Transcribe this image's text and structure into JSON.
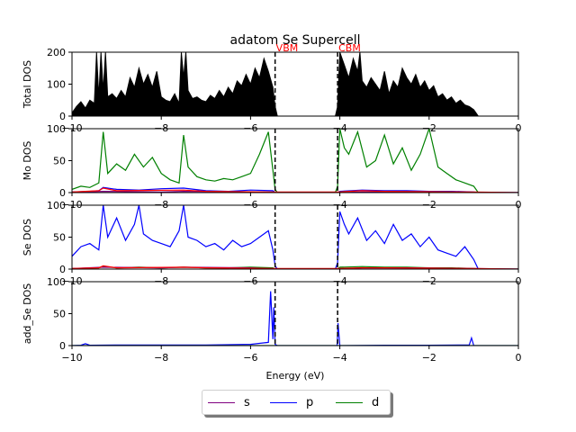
{
  "chart_data": {
    "type": "line",
    "title": "adatom Se Supercell",
    "xlabel": "Energy (eV)",
    "xlim": [
      -10,
      0
    ],
    "xticks": [
      "−10",
      "−8",
      "−6",
      "−4",
      "−2",
      "0"
    ],
    "xtick_values": [
      -10,
      -8,
      -6,
      -4,
      -2,
      0
    ],
    "markers": [
      {
        "label": "VBM",
        "x": -5.45,
        "color": "#ff0000"
      },
      {
        "label": "CBM",
        "x": -4.05,
        "color": "#ff0000"
      }
    ],
    "legend": {
      "placement": "lower-center-outside",
      "entries": [
        {
          "name": "s",
          "color": "#800080"
        },
        {
          "name": "p",
          "color": "#0000ff"
        },
        {
          "name": "d",
          "color": "#008000"
        }
      ]
    },
    "panels": [
      {
        "ylabel": "Total DOS",
        "ylim": [
          0,
          200
        ],
        "yticks": [
          "0",
          "100",
          "200"
        ],
        "ytick_values": [
          0,
          100,
          200
        ],
        "series": [
          {
            "color": "#000000",
            "fill": true,
            "x": [
              -10,
              -9.9,
              -9.8,
              -9.7,
              -9.6,
              -9.5,
              -9.45,
              -9.4,
              -9.35,
              -9.3,
              -9.25,
              -9.2,
              -9.1,
              -9.0,
              -8.9,
              -8.8,
              -8.7,
              -8.6,
              -8.5,
              -8.4,
              -8.3,
              -8.2,
              -8.1,
              -8.0,
              -7.9,
              -7.8,
              -7.7,
              -7.6,
              -7.55,
              -7.5,
              -7.45,
              -7.4,
              -7.3,
              -7.2,
              -7.1,
              -7.0,
              -6.9,
              -6.8,
              -6.7,
              -6.6,
              -6.5,
              -6.4,
              -6.3,
              -6.2,
              -6.1,
              -6.0,
              -5.9,
              -5.8,
              -5.7,
              -5.6,
              -5.5,
              -5.45,
              -5.4,
              -4.1,
              -4.05,
              -4.0,
              -3.9,
              -3.8,
              -3.7,
              -3.6,
              -3.55,
              -3.5,
              -3.4,
              -3.3,
              -3.2,
              -3.1,
              -3.0,
              -2.9,
              -2.8,
              -2.7,
              -2.6,
              -2.5,
              -2.4,
              -2.3,
              -2.2,
              -2.1,
              -2.0,
              -1.9,
              -1.8,
              -1.7,
              -1.6,
              -1.5,
              -1.4,
              -1.3,
              -1.2,
              -1.1,
              -1.0,
              -0.9,
              0
            ],
            "y": [
              10,
              30,
              45,
              25,
              50,
              40,
              200,
              60,
              200,
              80,
              200,
              60,
              70,
              55,
              80,
              60,
              120,
              90,
              150,
              100,
              130,
              90,
              140,
              60,
              50,
              45,
              70,
              40,
              200,
              120,
              200,
              80,
              55,
              60,
              50,
              45,
              65,
              55,
              80,
              60,
              90,
              70,
              110,
              95,
              130,
              100,
              150,
              120,
              180,
              140,
              90,
              30,
              0,
              0,
              30,
              200,
              160,
              120,
              180,
              140,
              200,
              110,
              90,
              120,
              100,
              80,
              140,
              70,
              110,
              90,
              150,
              120,
              100,
              130,
              90,
              110,
              80,
              95,
              60,
              70,
              50,
              60,
              40,
              50,
              35,
              30,
              20,
              0,
              0
            ]
          }
        ]
      },
      {
        "ylabel": "Mo DOS",
        "ylim": [
          0,
          100
        ],
        "yticks": [
          "0",
          "50",
          "100"
        ],
        "ytick_values": [
          0,
          50,
          100
        ],
        "series": [
          {
            "name": "d",
            "color": "#008000",
            "x": [
              -10,
              -9.8,
              -9.6,
              -9.4,
              -9.3,
              -9.2,
              -9.0,
              -8.8,
              -8.6,
              -8.4,
              -8.2,
              -8.0,
              -7.8,
              -7.6,
              -7.5,
              -7.4,
              -7.2,
              -7.0,
              -6.8,
              -6.6,
              -6.4,
              -6.2,
              -6.0,
              -5.8,
              -5.6,
              -5.5,
              -5.45,
              -5.4,
              -4.1,
              -4.05,
              -4.0,
              -3.9,
              -3.8,
              -3.6,
              -3.4,
              -3.2,
              -3.0,
              -2.8,
              -2.6,
              -2.4,
              -2.2,
              -2.0,
              -1.8,
              -1.6,
              -1.4,
              -1.2,
              -1.0,
              -0.9,
              -0.5,
              0
            ],
            "y": [
              5,
              10,
              8,
              15,
              95,
              30,
              45,
              35,
              60,
              40,
              55,
              30,
              20,
              15,
              90,
              40,
              25,
              20,
              18,
              22,
              20,
              25,
              30,
              60,
              95,
              35,
              5,
              0,
              0,
              10,
              100,
              70,
              60,
              95,
              40,
              50,
              90,
              45,
              70,
              35,
              60,
              100,
              40,
              30,
              20,
              15,
              10,
              0,
              0,
              0
            ]
          },
          {
            "name": "p",
            "color": "#0000ff",
            "x": [
              -10,
              -9.6,
              -9.4,
              -9.3,
              -9.0,
              -8.5,
              -8.0,
              -7.5,
              -7.0,
              -6.5,
              -6.0,
              -5.5,
              -5.45,
              -4.05,
              -4.0,
              -3.5,
              -3.0,
              -2.5,
              -2.0,
              -1.5,
              -1.0,
              -0.9,
              0
            ],
            "y": [
              1,
              2,
              3,
              8,
              5,
              4,
              6,
              7,
              3,
              2,
              4,
              3,
              0,
              0,
              2,
              4,
              3,
              3,
              2,
              2,
              1,
              0,
              0
            ]
          },
          {
            "name": "s",
            "color": "#800080",
            "x": [
              -10,
              -9.3,
              -8.0,
              -7.5,
              -6.0,
              -5.45,
              -4.05,
              -3.5,
              -2.5,
              -1.0,
              0
            ],
            "y": [
              0.5,
              2,
              1,
              2,
              1,
              0,
              0,
              1,
              1,
              0.5,
              0
            ]
          },
          {
            "name": "",
            "color": "#ff0000",
            "x": [
              -10,
              -9.4,
              -9.3,
              -9.0,
              -7.5,
              -7.0,
              -5.45,
              -4.05,
              -3.5,
              -3.0,
              -1.0,
              0
            ],
            "y": [
              1,
              3,
              7,
              3,
              4,
              2,
              1,
              1,
              3,
              2,
              1,
              0
            ]
          }
        ]
      },
      {
        "ylabel": "Se DOS",
        "ylim": [
          0,
          100
        ],
        "yticks": [
          "0",
          "50",
          "100"
        ],
        "ytick_values": [
          0,
          50,
          100
        ],
        "series": [
          {
            "name": "p",
            "color": "#0000ff",
            "x": [
              -10,
              -9.8,
              -9.6,
              -9.4,
              -9.3,
              -9.2,
              -9.0,
              -8.8,
              -8.6,
              -8.5,
              -8.4,
              -8.2,
              -8.0,
              -7.8,
              -7.6,
              -7.5,
              -7.4,
              -7.2,
              -7.0,
              -6.8,
              -6.6,
              -6.4,
              -6.2,
              -6.0,
              -5.8,
              -5.6,
              -5.5,
              -5.45,
              -5.4,
              -4.1,
              -4.05,
              -4.0,
              -3.9,
              -3.8,
              -3.6,
              -3.4,
              -3.2,
              -3.0,
              -2.8,
              -2.6,
              -2.4,
              -2.2,
              -2.0,
              -1.8,
              -1.6,
              -1.4,
              -1.2,
              -1.0,
              -0.9,
              -0.5,
              0
            ],
            "y": [
              20,
              35,
              40,
              30,
              100,
              50,
              80,
              45,
              70,
              100,
              55,
              45,
              40,
              35,
              60,
              100,
              50,
              45,
              35,
              40,
              30,
              45,
              35,
              40,
              50,
              60,
              30,
              5,
              0,
              0,
              10,
              90,
              70,
              55,
              80,
              45,
              60,
              40,
              70,
              45,
              55,
              35,
              50,
              30,
              25,
              20,
              35,
              15,
              0,
              0,
              0
            ]
          },
          {
            "name": "d",
            "color": "#008000",
            "x": [
              -10,
              -9.4,
              -9.3,
              -9.0,
              -8.5,
              -8.0,
              -7.5,
              -7.0,
              -6.5,
              -6.0,
              -5.5,
              -5.45,
              -4.05,
              -4.0,
              -3.5,
              -3.0,
              -2.5,
              -2.0,
              -1.5,
              -1.0,
              -0.9,
              0
            ],
            "y": [
              1,
              2,
              4,
              2,
              3,
              2,
              3,
              2,
              2,
              3,
              2,
              0,
              0,
              3,
              4,
              3,
              3,
              2,
              2,
              1,
              0,
              0
            ]
          },
          {
            "name": "s",
            "color": "#800080",
            "x": [
              -10,
              -9.3,
              -8.0,
              -7.5,
              -6.0,
              -5.45,
              -4.05,
              -3.5,
              -2.5,
              -1.0,
              0
            ],
            "y": [
              1,
              3,
              2,
              3,
              2,
              0,
              0,
              2,
              2,
              1,
              0
            ]
          },
          {
            "name": "",
            "color": "#ff0000",
            "x": [
              -10,
              -9.4,
              -9.3,
              -9.0,
              -7.5,
              -7.0,
              -5.45,
              -4.05,
              -3.5,
              -3.0,
              -1.0,
              0
            ],
            "y": [
              1,
              2,
              5,
              2,
              3,
              2,
              1,
              1,
              2,
              2,
              1,
              0
            ]
          }
        ]
      },
      {
        "ylabel": "add_Se DOS",
        "ylim": [
          0,
          100
        ],
        "yticks": [
          "0",
          "50",
          "100"
        ],
        "ytick_values": [
          0,
          50,
          100
        ],
        "series": [
          {
            "name": "p",
            "color": "#0000ff",
            "x": [
              -10,
              -9.8,
              -9.7,
              -9.6,
              -9.0,
              -8.0,
              -7.0,
              -6.0,
              -5.6,
              -5.55,
              -5.5,
              -5.48,
              -5.45,
              -5.4,
              -4.1,
              -4.06,
              -4.04,
              -4.0,
              -3.0,
              -2.0,
              -1.1,
              -1.05,
              -1.0,
              -0.5,
              0
            ],
            "y": [
              0,
              0.5,
              3,
              0.5,
              1,
              1,
              1,
              2,
              5,
              85,
              10,
              60,
              2,
              0,
              0,
              0,
              35,
              0,
              0.5,
              0.5,
              1,
              12,
              0,
              0,
              0
            ]
          },
          {
            "name": "d",
            "color": "#008000",
            "x": [
              -10,
              -5.45,
              -4.05,
              0
            ],
            "y": [
              0,
              0,
              0,
              0
            ]
          }
        ]
      }
    ]
  }
}
